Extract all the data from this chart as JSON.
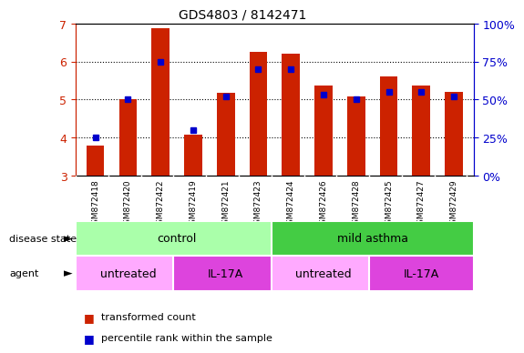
{
  "title": "GDS4803 / 8142471",
  "samples": [
    "GSM872418",
    "GSM872420",
    "GSM872422",
    "GSM872419",
    "GSM872421",
    "GSM872423",
    "GSM872424",
    "GSM872426",
    "GSM872428",
    "GSM872425",
    "GSM872427",
    "GSM872429"
  ],
  "transformed_count": [
    3.78,
    5.02,
    6.88,
    4.07,
    5.18,
    6.25,
    6.2,
    5.37,
    5.07,
    5.6,
    5.38,
    5.2
  ],
  "percentile_rank": [
    25,
    50,
    75,
    30,
    52,
    70,
    70,
    53,
    50,
    55,
    55,
    52
  ],
  "ylim_left": [
    3,
    7
  ],
  "ylim_right": [
    0,
    100
  ],
  "yticks_left": [
    3,
    4,
    5,
    6,
    7
  ],
  "yticks_right": [
    0,
    25,
    50,
    75,
    100
  ],
  "ytick_labels_right": [
    "0%",
    "25%",
    "50%",
    "75%",
    "100%"
  ],
  "bar_color": "#cc2200",
  "dot_color": "#0000cc",
  "background_color": "#ffffff",
  "disease_state_groups": [
    {
      "label": "control",
      "start": 0,
      "end": 6,
      "color": "#aaffaa"
    },
    {
      "label": "mild asthma",
      "start": 6,
      "end": 12,
      "color": "#44cc44"
    }
  ],
  "agent_groups": [
    {
      "label": "untreated",
      "start": 0,
      "end": 3,
      "color": "#ffaaff"
    },
    {
      "label": "IL-17A",
      "start": 3,
      "end": 6,
      "color": "#dd44dd"
    },
    {
      "label": "untreated",
      "start": 6,
      "end": 9,
      "color": "#ffaaff"
    },
    {
      "label": "IL-17A",
      "start": 9,
      "end": 12,
      "color": "#dd44dd"
    }
  ],
  "legend_items": [
    {
      "label": "transformed count",
      "color": "#cc2200"
    },
    {
      "label": "percentile rank within the sample",
      "color": "#0000cc"
    }
  ]
}
